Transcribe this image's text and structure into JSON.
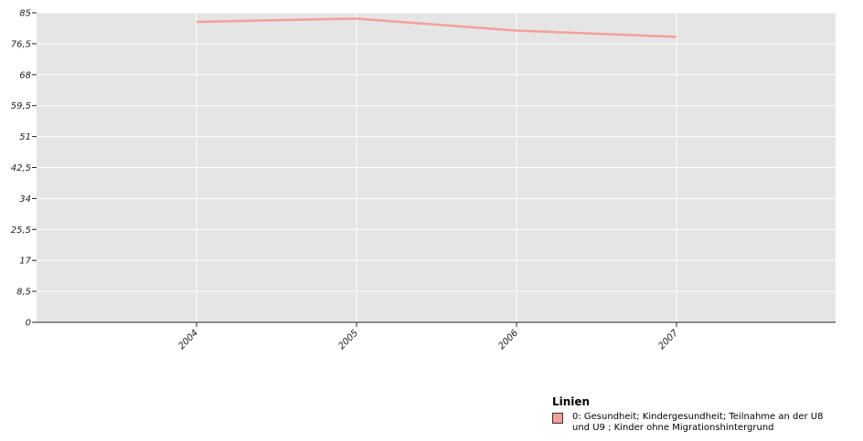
{
  "chart_data": {
    "type": "line",
    "x": [
      "2004",
      "2005",
      "2006",
      "2007"
    ],
    "series": [
      {
        "name": "0: Gesundheit; Kindergesundheit; Teilnahme an der U8\nund U9 ; Kinder ohne Migrationshintergrund",
        "values": [
          82.5,
          83.4,
          80.1,
          78.4
        ]
      }
    ],
    "yticks": [
      "0",
      "8,5",
      "17",
      "25,5",
      "34",
      "42,5",
      "51",
      "59,5",
      "68",
      "76,5",
      "85"
    ],
    "ylim": [
      0,
      85
    ],
    "grid": true,
    "legend_position": "bottom-right",
    "legend_title": "Linien",
    "line_color": "#f4a09a",
    "plot_background": "#e5e5e5"
  }
}
